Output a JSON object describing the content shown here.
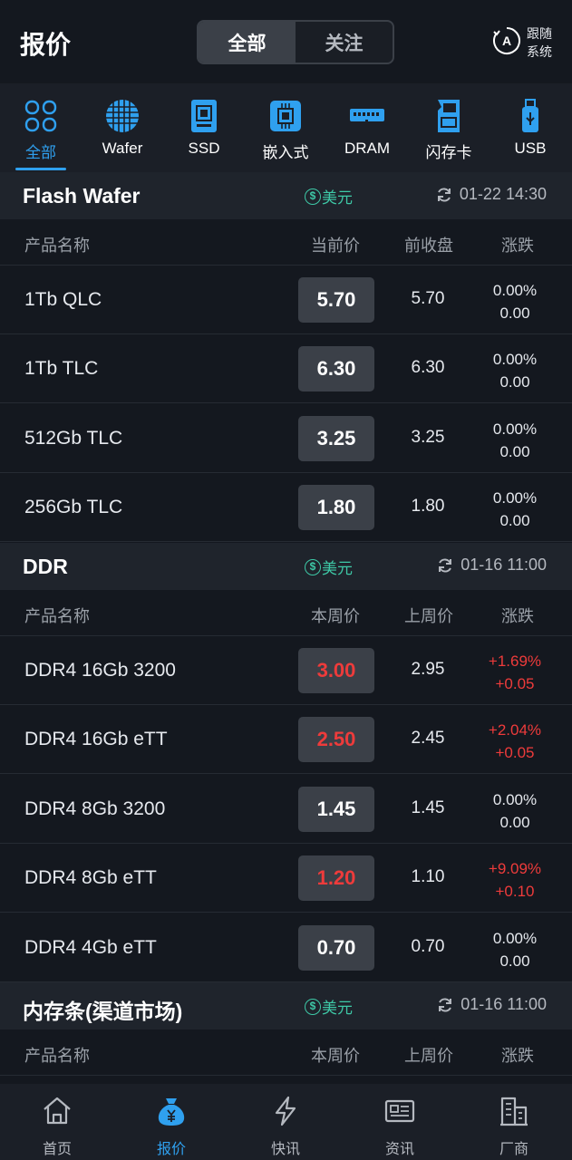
{
  "header": {
    "title": "报价",
    "segments": [
      "全部",
      "关注"
    ],
    "follow_label_1": "跟随",
    "follow_label_2": "系统",
    "follow_letter": "A"
  },
  "categories": [
    {
      "label": "全部",
      "icon": "grid-icon",
      "active": true
    },
    {
      "label": "Wafer",
      "icon": "wafer-icon"
    },
    {
      "label": "SSD",
      "icon": "ssd-icon"
    },
    {
      "label": "嵌入式",
      "icon": "chip-icon"
    },
    {
      "label": "DRAM",
      "icon": "dram-icon"
    },
    {
      "label": "闪存卡",
      "icon": "sd-card-icon"
    },
    {
      "label": "USB",
      "icon": "usb-icon"
    }
  ],
  "sections": [
    {
      "name": "Flash Wafer",
      "currency": "美元",
      "currency_symbol": "$",
      "time": "01-22 14:30",
      "columns": [
        "产品名称",
        "当前价",
        "前收盘",
        "涨跌"
      ],
      "rows": [
        {
          "name": "1Tb QLC",
          "price": "5.70",
          "prev": "5.70",
          "pct": "0.00%",
          "diff": "0.00",
          "up": false
        },
        {
          "name": "1Tb TLC",
          "price": "6.30",
          "prev": "6.30",
          "pct": "0.00%",
          "diff": "0.00",
          "up": false
        },
        {
          "name": "512Gb TLC",
          "price": "3.25",
          "prev": "3.25",
          "pct": "0.00%",
          "diff": "0.00",
          "up": false
        },
        {
          "name": "256Gb TLC",
          "price": "1.80",
          "prev": "1.80",
          "pct": "0.00%",
          "diff": "0.00",
          "up": false
        }
      ]
    },
    {
      "name": "DDR",
      "currency": "美元",
      "currency_symbol": "$",
      "time": "01-16 11:00",
      "columns": [
        "产品名称",
        "本周价",
        "上周价",
        "涨跌"
      ],
      "rows": [
        {
          "name": "DDR4 16Gb 3200",
          "price": "3.00",
          "prev": "2.95",
          "pct": "+1.69%",
          "diff": "+0.05",
          "up": true
        },
        {
          "name": "DDR4 16Gb eTT",
          "price": "2.50",
          "prev": "2.45",
          "pct": "+2.04%",
          "diff": "+0.05",
          "up": true
        },
        {
          "name": "DDR4 8Gb 3200",
          "price": "1.45",
          "prev": "1.45",
          "pct": "0.00%",
          "diff": "0.00",
          "up": false
        },
        {
          "name": "DDR4 8Gb eTT",
          "price": "1.20",
          "prev": "1.10",
          "pct": "+9.09%",
          "diff": "+0.10",
          "up": true
        },
        {
          "name": "DDR4 4Gb eTT",
          "price": "0.70",
          "prev": "0.70",
          "pct": "0.00%",
          "diff": "0.00",
          "up": false
        }
      ]
    },
    {
      "name": "内存条(渠道市场)",
      "currency": "美元",
      "currency_symbol": "$",
      "time": "01-16 11:00",
      "columns": [
        "产品名称",
        "本周价",
        "上周价",
        "涨跌"
      ],
      "rows": []
    }
  ],
  "bottom_nav": [
    {
      "label": "首页",
      "icon": "home-icon"
    },
    {
      "label": "报价",
      "icon": "money-bag-icon",
      "active": true
    },
    {
      "label": "快讯",
      "icon": "lightning-icon"
    },
    {
      "label": "资讯",
      "icon": "news-icon"
    },
    {
      "label": "厂商",
      "icon": "building-icon"
    }
  ],
  "colors": {
    "accent": "#2fa0ef",
    "up": "#ee3b3b",
    "currency": "#3ec9a7"
  }
}
